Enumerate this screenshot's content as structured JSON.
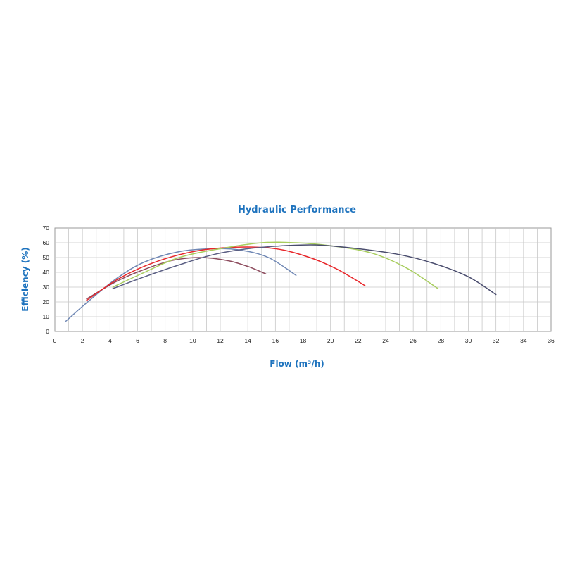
{
  "chart_data": {
    "type": "line",
    "title": "Hydraulic Performance",
    "xlabel": "Flow (m³/h)",
    "ylabel": "Efficiency (%)",
    "xlim": [
      0,
      36
    ],
    "ylim": [
      0,
      70
    ],
    "x_ticks": [
      "0",
      "2",
      "4",
      "6",
      "8",
      "10",
      "12",
      "14",
      "16",
      "18",
      "20",
      "22",
      "24",
      "26",
      "28",
      "30",
      "32",
      "34",
      "36"
    ],
    "y_ticks": [
      "0",
      "10",
      "20",
      "30",
      "40",
      "50",
      "60",
      "70"
    ],
    "grid": true,
    "legend": "none",
    "series": [
      {
        "color": "#6f87b4",
        "points": [
          [
            0.8,
            7
          ],
          [
            2.5,
            21
          ],
          [
            4.5,
            36
          ],
          [
            6.5,
            47
          ],
          [
            9,
            54
          ],
          [
            11.5,
            56
          ],
          [
            13.5,
            55
          ],
          [
            15.5,
            50
          ],
          [
            17.5,
            38
          ]
        ]
      },
      {
        "color": "#8c4a5c",
        "points": [
          [
            2.3,
            22
          ],
          [
            4.5,
            34
          ],
          [
            6.5,
            42
          ],
          [
            8.5,
            48
          ],
          [
            10.5,
            50
          ],
          [
            12.5,
            48
          ],
          [
            14,
            44
          ],
          [
            15.3,
            39
          ]
        ]
      },
      {
        "color": "#e8262a",
        "points": [
          [
            2.3,
            21
          ],
          [
            4.5,
            35
          ],
          [
            7,
            46
          ],
          [
            10,
            54
          ],
          [
            13,
            57
          ],
          [
            16,
            56
          ],
          [
            18.5,
            50
          ],
          [
            20.5,
            42
          ],
          [
            22.5,
            31
          ]
        ]
      },
      {
        "color": "#5a5e83",
        "points": [
          [
            4.2,
            29
          ],
          [
            6.5,
            37
          ],
          [
            9,
            45
          ],
          [
            11.5,
            52
          ],
          [
            14,
            56
          ],
          [
            16.5,
            58
          ]
        ]
      },
      {
        "color": "#a8cd5f",
        "points": [
          [
            4.2,
            30
          ],
          [
            6.5,
            40
          ],
          [
            9,
            50
          ],
          [
            12,
            56
          ],
          [
            15,
            60
          ],
          [
            17.5,
            60
          ],
          [
            20,
            58
          ],
          [
            23,
            53
          ],
          [
            25.5,
            43
          ],
          [
            27.8,
            29
          ]
        ]
      },
      {
        "color": "#4a4d6e",
        "points": [
          [
            16.5,
            58
          ],
          [
            19,
            58.5
          ],
          [
            22,
            56
          ],
          [
            25,
            52
          ],
          [
            27.5,
            46
          ],
          [
            30,
            37
          ],
          [
            32,
            25
          ]
        ]
      }
    ]
  }
}
